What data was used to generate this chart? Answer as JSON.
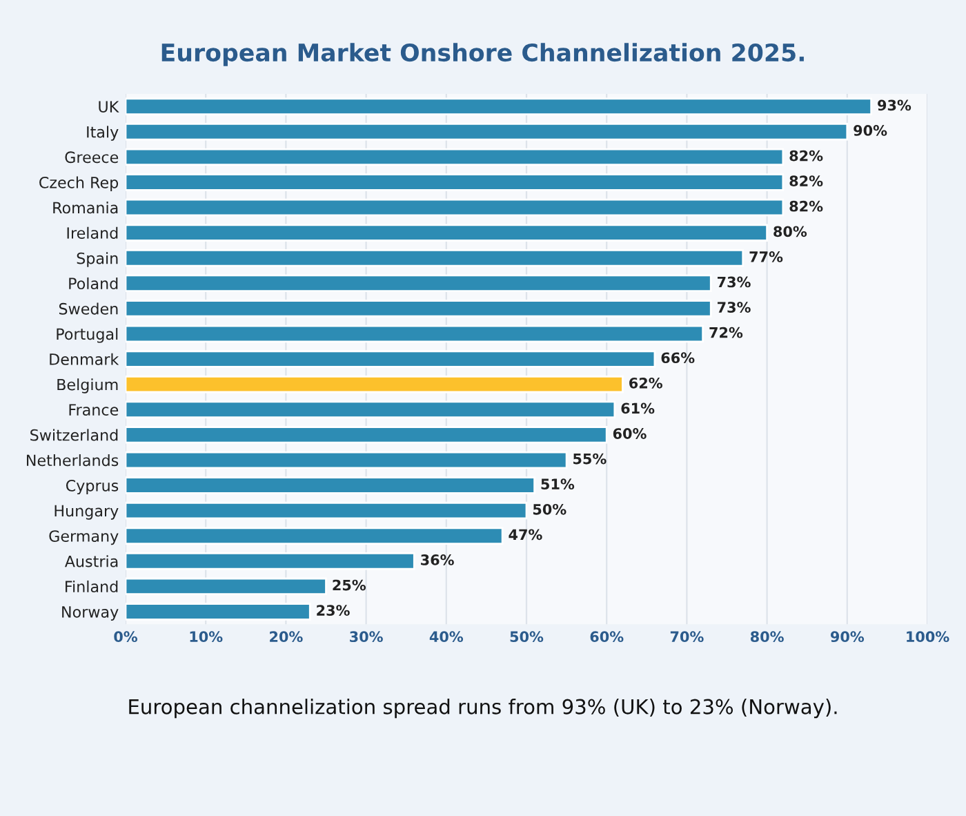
{
  "chart_data": {
    "type": "bar",
    "orientation": "horizontal",
    "title": "European Market Onshore Channelization 2025.",
    "categories": [
      "UK",
      "Italy",
      "Greece",
      "Czech Rep",
      "Romania",
      "Ireland",
      "Spain",
      "Poland",
      "Sweden",
      "Portugal",
      "Denmark",
      "Belgium",
      "France",
      "Switzerland",
      "Netherlands",
      "Cyprus",
      "Hungary",
      "Germany",
      "Austria",
      "Finland",
      "Norway"
    ],
    "values": [
      93,
      90,
      82,
      82,
      82,
      80,
      77,
      73,
      73,
      72,
      66,
      62,
      61,
      60,
      55,
      51,
      50,
      47,
      36,
      25,
      23
    ],
    "value_labels": [
      "93%",
      "90%",
      "82%",
      "82%",
      "82%",
      "80%",
      "77%",
      "73%",
      "73%",
      "72%",
      "66%",
      "62%",
      "61%",
      "60%",
      "55%",
      "51%",
      "50%",
      "47%",
      "36%",
      "25%",
      "23%"
    ],
    "colors": [
      "#2d8cb4",
      "#2d8cb4",
      "#2d8cb4",
      "#2d8cb4",
      "#2d8cb4",
      "#2d8cb4",
      "#2d8cb4",
      "#2d8cb4",
      "#2d8cb4",
      "#2d8cb4",
      "#2d8cb4",
      "#fcc12c",
      "#2d8cb4",
      "#2d8cb4",
      "#2d8cb4",
      "#2d8cb4",
      "#2d8cb4",
      "#2d8cb4",
      "#2d8cb4",
      "#2d8cb4",
      "#2d8cb4"
    ],
    "xlim": [
      0,
      100
    ],
    "xticks": [
      {
        "value": 0,
        "label": "0%"
      },
      {
        "value": 10,
        "label": "10%"
      },
      {
        "value": 20,
        "label": "20%"
      },
      {
        "value": 30,
        "label": "30%"
      },
      {
        "value": 40,
        "label": "40%"
      },
      {
        "value": 50,
        "label": "50%"
      },
      {
        "value": 60,
        "label": "60%"
      },
      {
        "value": 70,
        "label": "70%"
      },
      {
        "value": 80,
        "label": "80%"
      },
      {
        "value": 90,
        "label": "90%"
      },
      {
        "value": 100,
        "label": "100%"
      }
    ],
    "grid": "x",
    "annotations": [
      "European channelization spread runs from 93% (UK) to 23% (Norway)."
    ]
  }
}
